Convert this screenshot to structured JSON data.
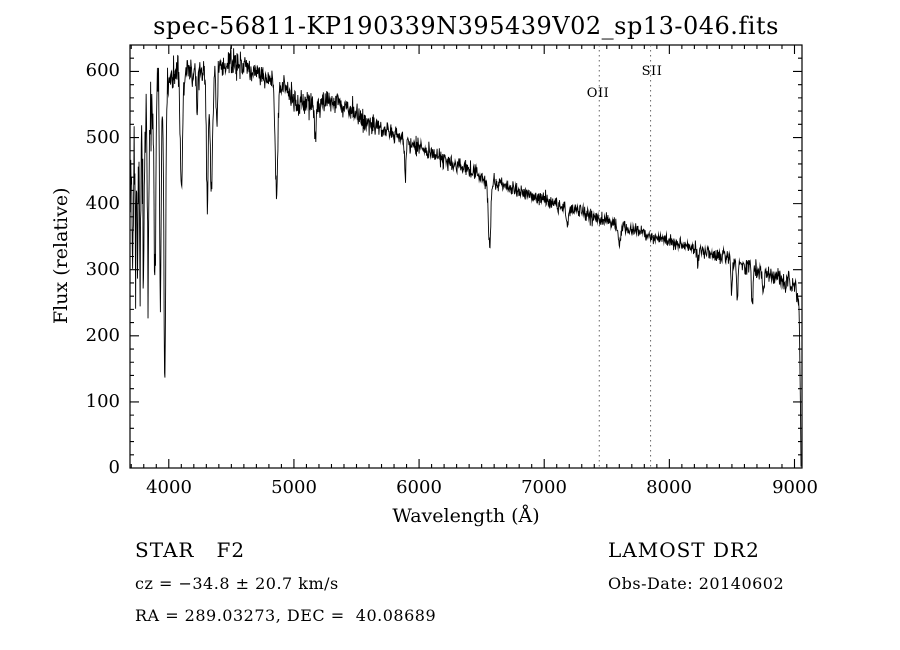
{
  "title": "spec-56811-KP190339N395439V02_sp13-046.fits",
  "chart_data": {
    "type": "line",
    "title": "spec-56811-KP190339N395439V02_sp13-046.fits",
    "xlabel": "Wavelength (Å)",
    "ylabel": "Flux (relative)",
    "xlim": [
      3690,
      9060
    ],
    "ylim": [
      0,
      640
    ],
    "grid": false,
    "legend": "none",
    "line_color": "#000000",
    "marker_line_color": "#666666",
    "xticks": [
      4000,
      5000,
      6000,
      7000,
      8000,
      9000
    ],
    "yticks": [
      0,
      100,
      200,
      300,
      400,
      500,
      600
    ],
    "xtick_labels": [
      "4000",
      "5000",
      "6000",
      "7000",
      "8000",
      "9000"
    ],
    "ytick_labels": [
      "0",
      "100",
      "200",
      "300",
      "400",
      "500",
      "600"
    ],
    "xminor_step": 100,
    "yminor_step": 20,
    "sample_step": 3,
    "marker_lines": [
      {
        "wavelength": 7440,
        "label": "OII"
      },
      {
        "wavelength": 7850,
        "label": "SII"
      }
    ],
    "continuum": [
      [
        3690,
        400
      ],
      [
        3705,
        480
      ],
      [
        3725,
        505
      ],
      [
        3745,
        490
      ],
      [
        3765,
        500
      ],
      [
        3790,
        525
      ],
      [
        3815,
        535
      ],
      [
        3840,
        530
      ],
      [
        3870,
        550
      ],
      [
        3900,
        560
      ],
      [
        3930,
        565
      ],
      [
        3960,
        570
      ],
      [
        3990,
        580
      ],
      [
        4020,
        592
      ],
      [
        4060,
        598
      ],
      [
        4100,
        592
      ],
      [
        4150,
        600
      ],
      [
        4200,
        598
      ],
      [
        4250,
        604
      ],
      [
        4300,
        592
      ],
      [
        4350,
        595
      ],
      [
        4400,
        602
      ],
      [
        4450,
        608
      ],
      [
        4500,
        610
      ],
      [
        4560,
        615
      ],
      [
        4620,
        608
      ],
      [
        4680,
        600
      ],
      [
        4740,
        595
      ],
      [
        4800,
        588
      ],
      [
        4860,
        578
      ],
      [
        4920,
        580
      ],
      [
        4980,
        560
      ],
      [
        5040,
        552
      ],
      [
        5100,
        556
      ],
      [
        5160,
        548
      ],
      [
        5220,
        556
      ],
      [
        5280,
        550
      ],
      [
        5340,
        556
      ],
      [
        5400,
        548
      ],
      [
        5460,
        542
      ],
      [
        5520,
        530
      ],
      [
        5580,
        524
      ],
      [
        5640,
        518
      ],
      [
        5700,
        512
      ],
      [
        5760,
        508
      ],
      [
        5820,
        502
      ],
      [
        5880,
        497
      ],
      [
        5940,
        490
      ],
      [
        6000,
        486
      ],
      [
        6080,
        478
      ],
      [
        6160,
        470
      ],
      [
        6240,
        463
      ],
      [
        6320,
        456
      ],
      [
        6400,
        449
      ],
      [
        6480,
        443
      ],
      [
        6560,
        436
      ],
      [
        6640,
        430
      ],
      [
        6720,
        424
      ],
      [
        6800,
        418
      ],
      [
        6880,
        413
      ],
      [
        6960,
        408
      ],
      [
        7040,
        403
      ],
      [
        7120,
        398
      ],
      [
        7200,
        392
      ],
      [
        7280,
        387
      ],
      [
        7360,
        382
      ],
      [
        7440,
        377
      ],
      [
        7520,
        372
      ],
      [
        7600,
        367
      ],
      [
        7680,
        362
      ],
      [
        7760,
        357
      ],
      [
        7840,
        352
      ],
      [
        7920,
        348
      ],
      [
        8000,
        344
      ],
      [
        8080,
        339
      ],
      [
        8160,
        335
      ],
      [
        8240,
        330
      ],
      [
        8320,
        326
      ],
      [
        8400,
        321
      ],
      [
        8480,
        316
      ],
      [
        8560,
        311
      ],
      [
        8640,
        306
      ],
      [
        8720,
        300
      ],
      [
        8800,
        294
      ],
      [
        8880,
        288
      ],
      [
        8940,
        282
      ],
      [
        9000,
        276
      ],
      [
        9020,
        268
      ],
      [
        9035,
        252
      ],
      [
        9045,
        130
      ],
      [
        9052,
        2
      ]
    ],
    "absorption_lines": [
      {
        "center": 3712,
        "depth": 160,
        "width": 4
      },
      {
        "center": 3734,
        "depth": 185,
        "width": 4
      },
      {
        "center": 3750,
        "depth": 205,
        "width": 5
      },
      {
        "center": 3771,
        "depth": 215,
        "width": 5
      },
      {
        "center": 3798,
        "depth": 235,
        "width": 5
      },
      {
        "center": 3835,
        "depth": 265,
        "width": 6
      },
      {
        "center": 3889,
        "depth": 285,
        "width": 6
      },
      {
        "center": 3933,
        "depth": 330,
        "width": 6
      },
      {
        "center": 3968,
        "depth": 440,
        "width": 7
      },
      {
        "center": 4101,
        "depth": 175,
        "width": 9
      },
      {
        "center": 4226,
        "depth": 70,
        "width": 5
      },
      {
        "center": 4308,
        "depth": 200,
        "width": 7
      },
      {
        "center": 4340,
        "depth": 185,
        "width": 9
      },
      {
        "center": 4383,
        "depth": 90,
        "width": 5
      },
      {
        "center": 4861,
        "depth": 165,
        "width": 10
      },
      {
        "center": 5172,
        "depth": 55,
        "width": 7
      },
      {
        "center": 5890,
        "depth": 55,
        "width": 6
      },
      {
        "center": 6563,
        "depth": 100,
        "width": 10
      },
      {
        "center": 7186,
        "depth": 25,
        "width": 8
      },
      {
        "center": 7600,
        "depth": 30,
        "width": 10
      },
      {
        "center": 8227,
        "depth": 25,
        "width": 6
      },
      {
        "center": 8498,
        "depth": 45,
        "width": 6
      },
      {
        "center": 8542,
        "depth": 60,
        "width": 6
      },
      {
        "center": 8662,
        "depth": 55,
        "width": 6
      },
      {
        "center": 8750,
        "depth": 35,
        "width": 6
      }
    ],
    "noise_bands": [
      {
        "from": 3690,
        "to": 3800,
        "sigma": 42
      },
      {
        "from": 3800,
        "to": 3920,
        "sigma": 26
      },
      {
        "from": 3920,
        "to": 4050,
        "sigma": 15
      },
      {
        "from": 4050,
        "to": 4600,
        "sigma": 11
      },
      {
        "from": 4600,
        "to": 5600,
        "sigma": 9
      },
      {
        "from": 5600,
        "to": 6600,
        "sigma": 7
      },
      {
        "from": 6600,
        "to": 7600,
        "sigma": 5.5
      },
      {
        "from": 7600,
        "to": 8600,
        "sigma": 5
      },
      {
        "from": 8600,
        "to": 9060,
        "sigma": 7
      }
    ]
  },
  "annotations": {
    "class_label": "STAR   F2",
    "survey": "LAMOST DR2",
    "cz": "cz = −34.8 ± 20.7 km/s",
    "obs_date": "Obs-Date: 20140602",
    "radec": "RA = 289.03273, DEC =  40.08689"
  }
}
